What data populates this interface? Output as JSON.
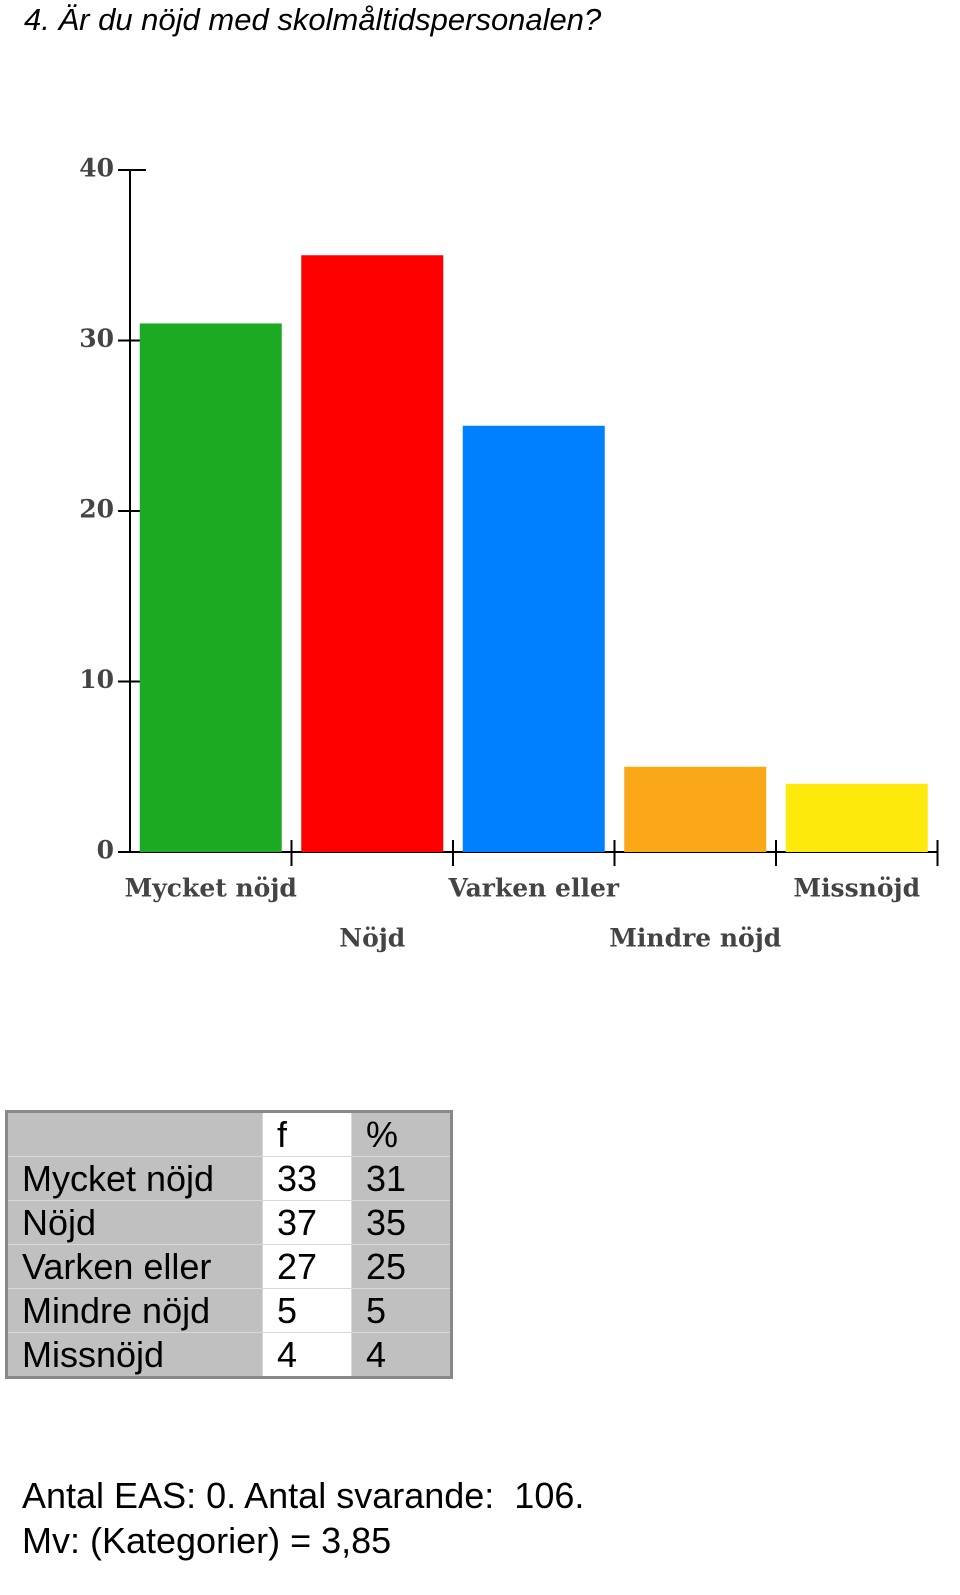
{
  "title": "4. Är du nöjd med skolmåltidspersonalen?",
  "chart_data": {
    "type": "bar",
    "categories": [
      "Mycket nöjd",
      "Nöjd",
      "Varken eller",
      "Mindre nöjd",
      "Missnöjd"
    ],
    "values": [
      31,
      35,
      25,
      5,
      4
    ],
    "colors": [
      "#1caa22",
      "#fe0000",
      "#0080ff",
      "#fba818",
      "#fde90c"
    ],
    "ylim": [
      0,
      40
    ],
    "yticks": [
      0,
      10,
      20,
      30,
      40
    ]
  },
  "table": {
    "header": [
      "f",
      "%"
    ],
    "rows": [
      [
        "Mycket nöjd",
        33,
        31
      ],
      [
        "Nöjd",
        37,
        35
      ],
      [
        "Varken eller",
        27,
        25
      ],
      [
        "Mindre nöjd",
        5,
        5
      ],
      [
        "Missnöjd",
        4,
        4
      ]
    ]
  },
  "footer": [
    "Antal EAS: 0. Antal svarande:  106.",
    "Mv: (Kategorier) = 3,85"
  ]
}
